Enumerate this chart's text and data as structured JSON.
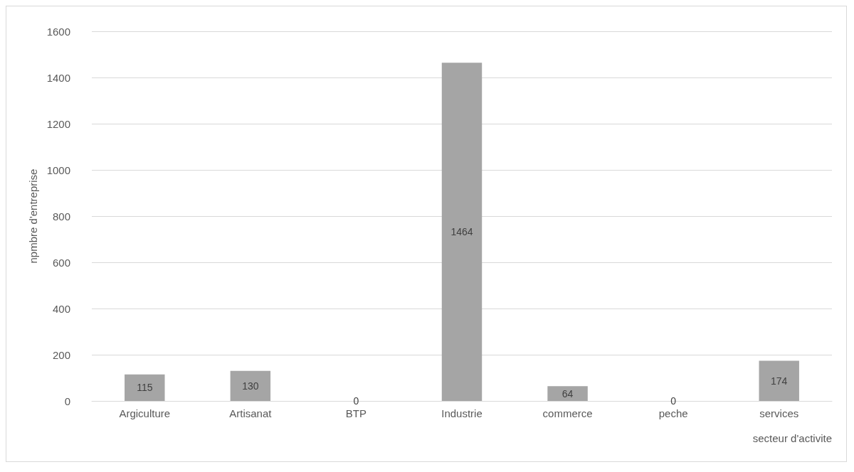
{
  "chart_data": {
    "type": "bar",
    "xlabel": "secteur d'activite",
    "ylabel": "npmbre d'entreprise",
    "categories": [
      "Argiculture",
      "Artisanat",
      "BTP",
      "Industrie",
      "commerce",
      "peche",
      "services"
    ],
    "values": [
      115,
      130,
      0,
      1464,
      64,
      0,
      174
    ],
    "color": "#a5a5a5",
    "ylim": [
      0,
      1600
    ],
    "yticks": [
      0,
      200,
      400,
      600,
      800,
      1000,
      1200,
      1400,
      1600
    ],
    "grid": "y",
    "data_labels": true
  }
}
